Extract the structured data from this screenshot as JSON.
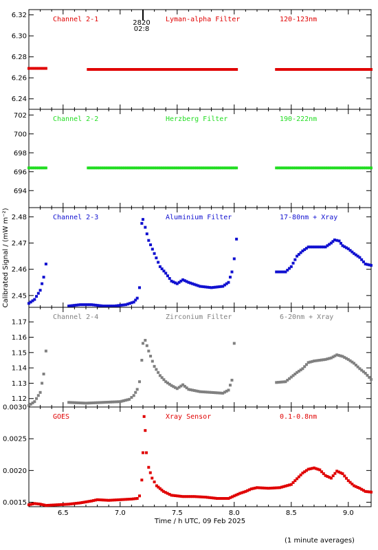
{
  "chart_data": {
    "type": "scatter",
    "x_axis": {
      "label": "Time / h UTC, 09 Feb 2025",
      "range": [
        6.2,
        9.2
      ],
      "ticks": [
        6.5,
        7.0,
        7.5,
        8.0,
        8.5,
        9.0
      ],
      "tick_labels": [
        "6.5",
        "7.0",
        "7.5",
        "8.0",
        "8.5",
        "9.0"
      ]
    },
    "y_axis_label": "Calibrated Signal / (mW m⁻²)",
    "marker": {
      "label_top": "2820",
      "label_bottom": "02:8",
      "x": 7.2
    },
    "footnote": "(1 minute averages)",
    "panels": [
      {
        "name": "Channel 2-1",
        "filter": "Lyman-alpha Filter",
        "band": "120-123nm",
        "color": "#e00000",
        "ylim": [
          6.23,
          6.325
        ],
        "yticks": [
          6.24,
          6.26,
          6.28,
          6.3,
          6.32
        ],
        "ytick_labels": [
          "6.24",
          "6.26",
          "6.28",
          "6.30",
          "6.32"
        ],
        "series": [
          {
            "x": [
              6.2,
              6.35
            ],
            "y": [
              6.269,
              6.269
            ]
          },
          {
            "x": [
              6.72,
              8.02
            ],
            "y": [
              6.268,
              6.268
            ]
          },
          {
            "x": [
              8.37,
              9.2
            ],
            "y": [
              6.268,
              6.268
            ]
          }
        ]
      },
      {
        "name": "Channel 2-2",
        "filter": "Herzberg Filter",
        "band": "190-222nm",
        "color": "#22dd22",
        "ylim": [
          692.2,
          702.6
        ],
        "yticks": [
          694,
          696,
          698,
          700,
          702
        ],
        "ytick_labels": [
          "694",
          "696",
          "698",
          "700",
          "702"
        ],
        "series": [
          {
            "x": [
              6.2,
              6.35
            ],
            "y": [
              696.4,
              696.4
            ]
          },
          {
            "x": [
              6.72,
              8.02
            ],
            "y": [
              696.4,
              696.4
            ]
          },
          {
            "x": [
              8.37,
              9.2
            ],
            "y": [
              696.4,
              696.4
            ]
          }
        ]
      },
      {
        "name": "Channel 2-3",
        "filter": "Aluminium Filter",
        "band": "17-80nm + Xray",
        "color": "#1010d0",
        "ylim": [
          2.4455,
          2.4835
        ],
        "yticks": [
          2.45,
          2.46,
          2.47,
          2.48
        ],
        "ytick_labels": [
          "2.45",
          "2.46",
          "2.47",
          "2.48"
        ],
        "series": [
          {
            "x": [
              6.2,
              6.25,
              6.3,
              6.33,
              6.35
            ],
            "y": [
              2.447,
              2.4485,
              2.452,
              2.457,
              2.462
            ]
          },
          {
            "x": [
              6.55,
              6.65,
              6.75,
              6.85,
              6.95,
              7.05,
              7.12,
              7.15,
              7.17
            ],
            "y": [
              2.446,
              2.4465,
              2.4465,
              2.446,
              2.446,
              2.4465,
              2.4475,
              2.449,
              2.453
            ]
          },
          {
            "x": [
              7.19,
              7.2,
              7.22,
              7.25,
              7.3,
              7.35,
              7.4,
              7.45,
              7.5,
              7.55,
              7.6,
              7.7,
              7.8,
              7.9,
              7.95,
              7.98,
              8.0,
              8.02
            ],
            "y": [
              2.4775,
              2.479,
              2.476,
              2.471,
              2.466,
              2.461,
              2.4585,
              2.4555,
              2.4545,
              2.456,
              2.455,
              2.4535,
              2.453,
              2.4535,
              2.455,
              2.459,
              2.464,
              2.4715
            ]
          },
          {
            "x": [
              8.37,
              8.45,
              8.5,
              8.55,
              8.6,
              8.65,
              8.7,
              8.75,
              8.8,
              8.85,
              8.88,
              8.92,
              8.95,
              9.0,
              9.05,
              9.1,
              9.15,
              9.2
            ],
            "y": [
              2.459,
              2.459,
              2.461,
              2.465,
              2.467,
              2.4685,
              2.4685,
              2.4685,
              2.4685,
              2.47,
              2.4712,
              2.4708,
              2.469,
              2.4678,
              2.466,
              2.4645,
              2.462,
              2.4615
            ]
          }
        ]
      },
      {
        "name": "Channel 2-4",
        "filter": "Zirconium Filter",
        "band": "6-20nm + Xray",
        "color": "#808080",
        "ylim": [
          1.1145,
          1.1795
        ],
        "yticks": [
          1.12,
          1.13,
          1.14,
          1.15,
          1.16,
          1.17
        ],
        "ytick_labels": [
          "1.12",
          "1.13",
          "1.14",
          "1.15",
          "1.16",
          "1.17"
        ],
        "series": [
          {
            "x": [
              6.2,
              6.25,
              6.3,
              6.33,
              6.35
            ],
            "y": [
              1.1155,
              1.118,
              1.124,
              1.136,
              1.151
            ]
          },
          {
            "x": [
              6.55,
              6.7,
              6.85,
              7.0,
              7.08,
              7.12,
              7.15,
              7.17,
              7.19
            ],
            "y": [
              1.1175,
              1.117,
              1.1175,
              1.118,
              1.1195,
              1.122,
              1.126,
              1.131,
              1.145
            ]
          },
          {
            "x": [
              7.2,
              7.22,
              7.25,
              7.3,
              7.35,
              7.4,
              7.45,
              7.5,
              7.55,
              7.6,
              7.7,
              7.8,
              7.9,
              7.95,
              7.98,
              8.0
            ],
            "y": [
              1.156,
              1.158,
              1.151,
              1.141,
              1.135,
              1.131,
              1.1285,
              1.1265,
              1.129,
              1.126,
              1.1245,
              1.124,
              1.1235,
              1.1255,
              1.132,
              1.156
            ]
          },
          {
            "x": [
              8.37,
              8.45,
              8.5,
              8.55,
              8.6,
              8.65,
              8.7,
              8.75,
              8.8,
              8.85,
              8.9,
              8.95,
              9.0,
              9.05,
              9.1,
              9.15,
              9.2
            ],
            "y": [
              1.1305,
              1.131,
              1.134,
              1.137,
              1.1395,
              1.1435,
              1.1445,
              1.145,
              1.1455,
              1.1465,
              1.1485,
              1.1475,
              1.1455,
              1.143,
              1.1395,
              1.1365,
              1.1325
            ]
          }
        ]
      },
      {
        "name": "GOES",
        "filter": "Xray Sensor",
        "band": "0.1-0.8nm",
        "color": "#e00000",
        "ylim": [
          0.00143,
          0.003
        ],
        "yticks": [
          0.0015,
          0.002,
          0.0025,
          0.003
        ],
        "ytick_labels": [
          "0.0015",
          "0.0020",
          "0.0025",
          "0.0030"
        ],
        "series": [
          {
            "x": [
              6.2,
              6.25,
              6.3,
              6.35,
              6.45,
              6.55,
              6.65,
              6.75,
              6.8,
              6.9,
              7.0,
              7.1,
              7.15,
              7.17,
              7.19,
              7.2,
              7.21,
              7.22,
              7.23,
              7.25,
              7.28,
              7.32,
              7.38,
              7.45,
              7.55,
              7.65,
              7.75,
              7.85,
              7.95,
              8.05,
              8.1,
              8.15,
              8.2,
              8.3,
              8.4,
              8.5,
              8.55,
              8.6,
              8.65,
              8.7,
              8.75,
              8.8,
              8.85,
              8.9,
              8.95,
              9.0,
              9.05,
              9.1,
              9.15,
              9.2
            ],
            "y": [
              0.00146,
              0.00148,
              0.00147,
              0.00145,
              0.00146,
              0.00147,
              0.00149,
              0.00152,
              0.00154,
              0.00153,
              0.00154,
              0.00155,
              0.00156,
              0.0016,
              0.00185,
              0.00228,
              0.00285,
              0.00263,
              0.00228,
              0.00205,
              0.00188,
              0.00176,
              0.00167,
              0.00161,
              0.00159,
              0.00159,
              0.00158,
              0.00156,
              0.00156,
              0.00164,
              0.00167,
              0.00171,
              0.00173,
              0.00172,
              0.00173,
              0.00178,
              0.00187,
              0.00196,
              0.00202,
              0.00204,
              0.00201,
              0.00192,
              0.00188,
              0.00199,
              0.00195,
              0.00184,
              0.00176,
              0.00172,
              0.00167,
              0.00166
            ]
          }
        ]
      }
    ]
  }
}
